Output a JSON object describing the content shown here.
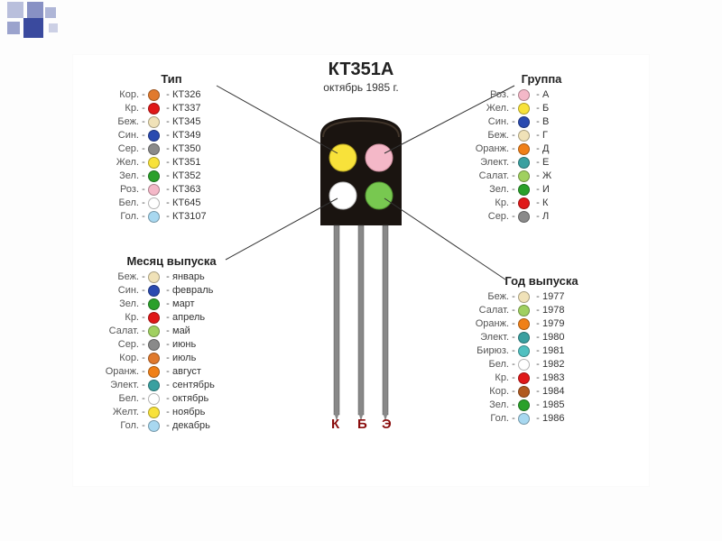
{
  "title": "КТ351А",
  "subtitle": "октябрь 1985 г.",
  "pins": {
    "k": "К",
    "b": "Б",
    "e": "Э"
  },
  "transistor": {
    "body_color": "#1a1410",
    "body_highlight": "#3a2e24",
    "dot_colors": [
      "#f8e23a",
      "#f4b8c8",
      "#ffffff",
      "#78c850"
    ]
  },
  "sections": {
    "type": {
      "header": "Тип",
      "items": [
        {
          "abbr": "Кор.",
          "color": "#e07a2e",
          "val": "КТ326"
        },
        {
          "abbr": "Кр.",
          "color": "#e01818",
          "val": "КТ337"
        },
        {
          "abbr": "Беж.",
          "color": "#f0e2b8",
          "val": "КТ345"
        },
        {
          "abbr": "Син.",
          "color": "#2a4ab0",
          "val": "КТ349"
        },
        {
          "abbr": "Сер.",
          "color": "#8a8a8a",
          "val": "КТ350"
        },
        {
          "abbr": "Жел.",
          "color": "#f8e23a",
          "val": "КТ351"
        },
        {
          "abbr": "Зел.",
          "color": "#2aa02a",
          "val": "КТ352"
        },
        {
          "abbr": "Роз.",
          "color": "#f4b8c8",
          "val": "КТ363"
        },
        {
          "abbr": "Бел.",
          "color": "#ffffff",
          "val": "КТ645"
        },
        {
          "abbr": "Гол.",
          "color": "#a8d8f0",
          "val": "КТ3107"
        }
      ]
    },
    "group": {
      "header": "Группа",
      "items": [
        {
          "abbr": "Роз.",
          "color": "#f4b8c8",
          "val": "А"
        },
        {
          "abbr": "Жел.",
          "color": "#f8e23a",
          "val": "Б"
        },
        {
          "abbr": "Син.",
          "color": "#2a4ab0",
          "val": "В"
        },
        {
          "abbr": "Беж.",
          "color": "#f0e2b8",
          "val": "Г"
        },
        {
          "abbr": "Оранж.",
          "color": "#f08018",
          "val": "Д"
        },
        {
          "abbr": "Элект.",
          "color": "#3aa0a0",
          "val": "Е"
        },
        {
          "abbr": "Салат.",
          "color": "#a0d060",
          "val": "Ж"
        },
        {
          "abbr": "Зел.",
          "color": "#2aa02a",
          "val": "И"
        },
        {
          "abbr": "Кр.",
          "color": "#e01818",
          "val": "К"
        },
        {
          "abbr": "Сер.",
          "color": "#8a8a8a",
          "val": "Л"
        }
      ]
    },
    "month": {
      "header": "Месяц выпуска",
      "items": [
        {
          "abbr": "Беж.",
          "color": "#f0e2b8",
          "val": "январь"
        },
        {
          "abbr": "Син.",
          "color": "#2a4ab0",
          "val": "февраль"
        },
        {
          "abbr": "Зел.",
          "color": "#2aa02a",
          "val": "март"
        },
        {
          "abbr": "Кр.",
          "color": "#e01818",
          "val": "апрель"
        },
        {
          "abbr": "Салат.",
          "color": "#a0d060",
          "val": "май"
        },
        {
          "abbr": "Сер.",
          "color": "#8a8a8a",
          "val": "июнь"
        },
        {
          "abbr": "Кор.",
          "color": "#e07a2e",
          "val": "июль"
        },
        {
          "abbr": "Оранж.",
          "color": "#f08018",
          "val": "август"
        },
        {
          "abbr": "Элект.",
          "color": "#3aa0a0",
          "val": "сентябрь"
        },
        {
          "abbr": "Бел.",
          "color": "#ffffff",
          "val": "октябрь"
        },
        {
          "abbr": "Желт.",
          "color": "#f8e23a",
          "val": "ноябрь"
        },
        {
          "abbr": "Гол.",
          "color": "#a8d8f0",
          "val": "декабрь"
        }
      ]
    },
    "year": {
      "header": "Год выпуска",
      "items": [
        {
          "abbr": "Беж.",
          "color": "#f0e2b8",
          "val": "1977"
        },
        {
          "abbr": "Салат.",
          "color": "#a0d060",
          "val": "1978"
        },
        {
          "abbr": "Оранж.",
          "color": "#f08018",
          "val": "1979"
        },
        {
          "abbr": "Элект.",
          "color": "#3aa0a0",
          "val": "1980"
        },
        {
          "abbr": "Бирюз.",
          "color": "#50c0c0",
          "val": "1981"
        },
        {
          "abbr": "Бел.",
          "color": "#ffffff",
          "val": "1982"
        },
        {
          "abbr": "Кр.",
          "color": "#e01818",
          "val": "1983"
        },
        {
          "abbr": "Кор.",
          "color": "#b05a20",
          "val": "1984"
        },
        {
          "abbr": "Зел.",
          "color": "#2aa02a",
          "val": "1985"
        },
        {
          "abbr": "Гол.",
          "color": "#a8d8f0",
          "val": "1986"
        }
      ]
    }
  }
}
